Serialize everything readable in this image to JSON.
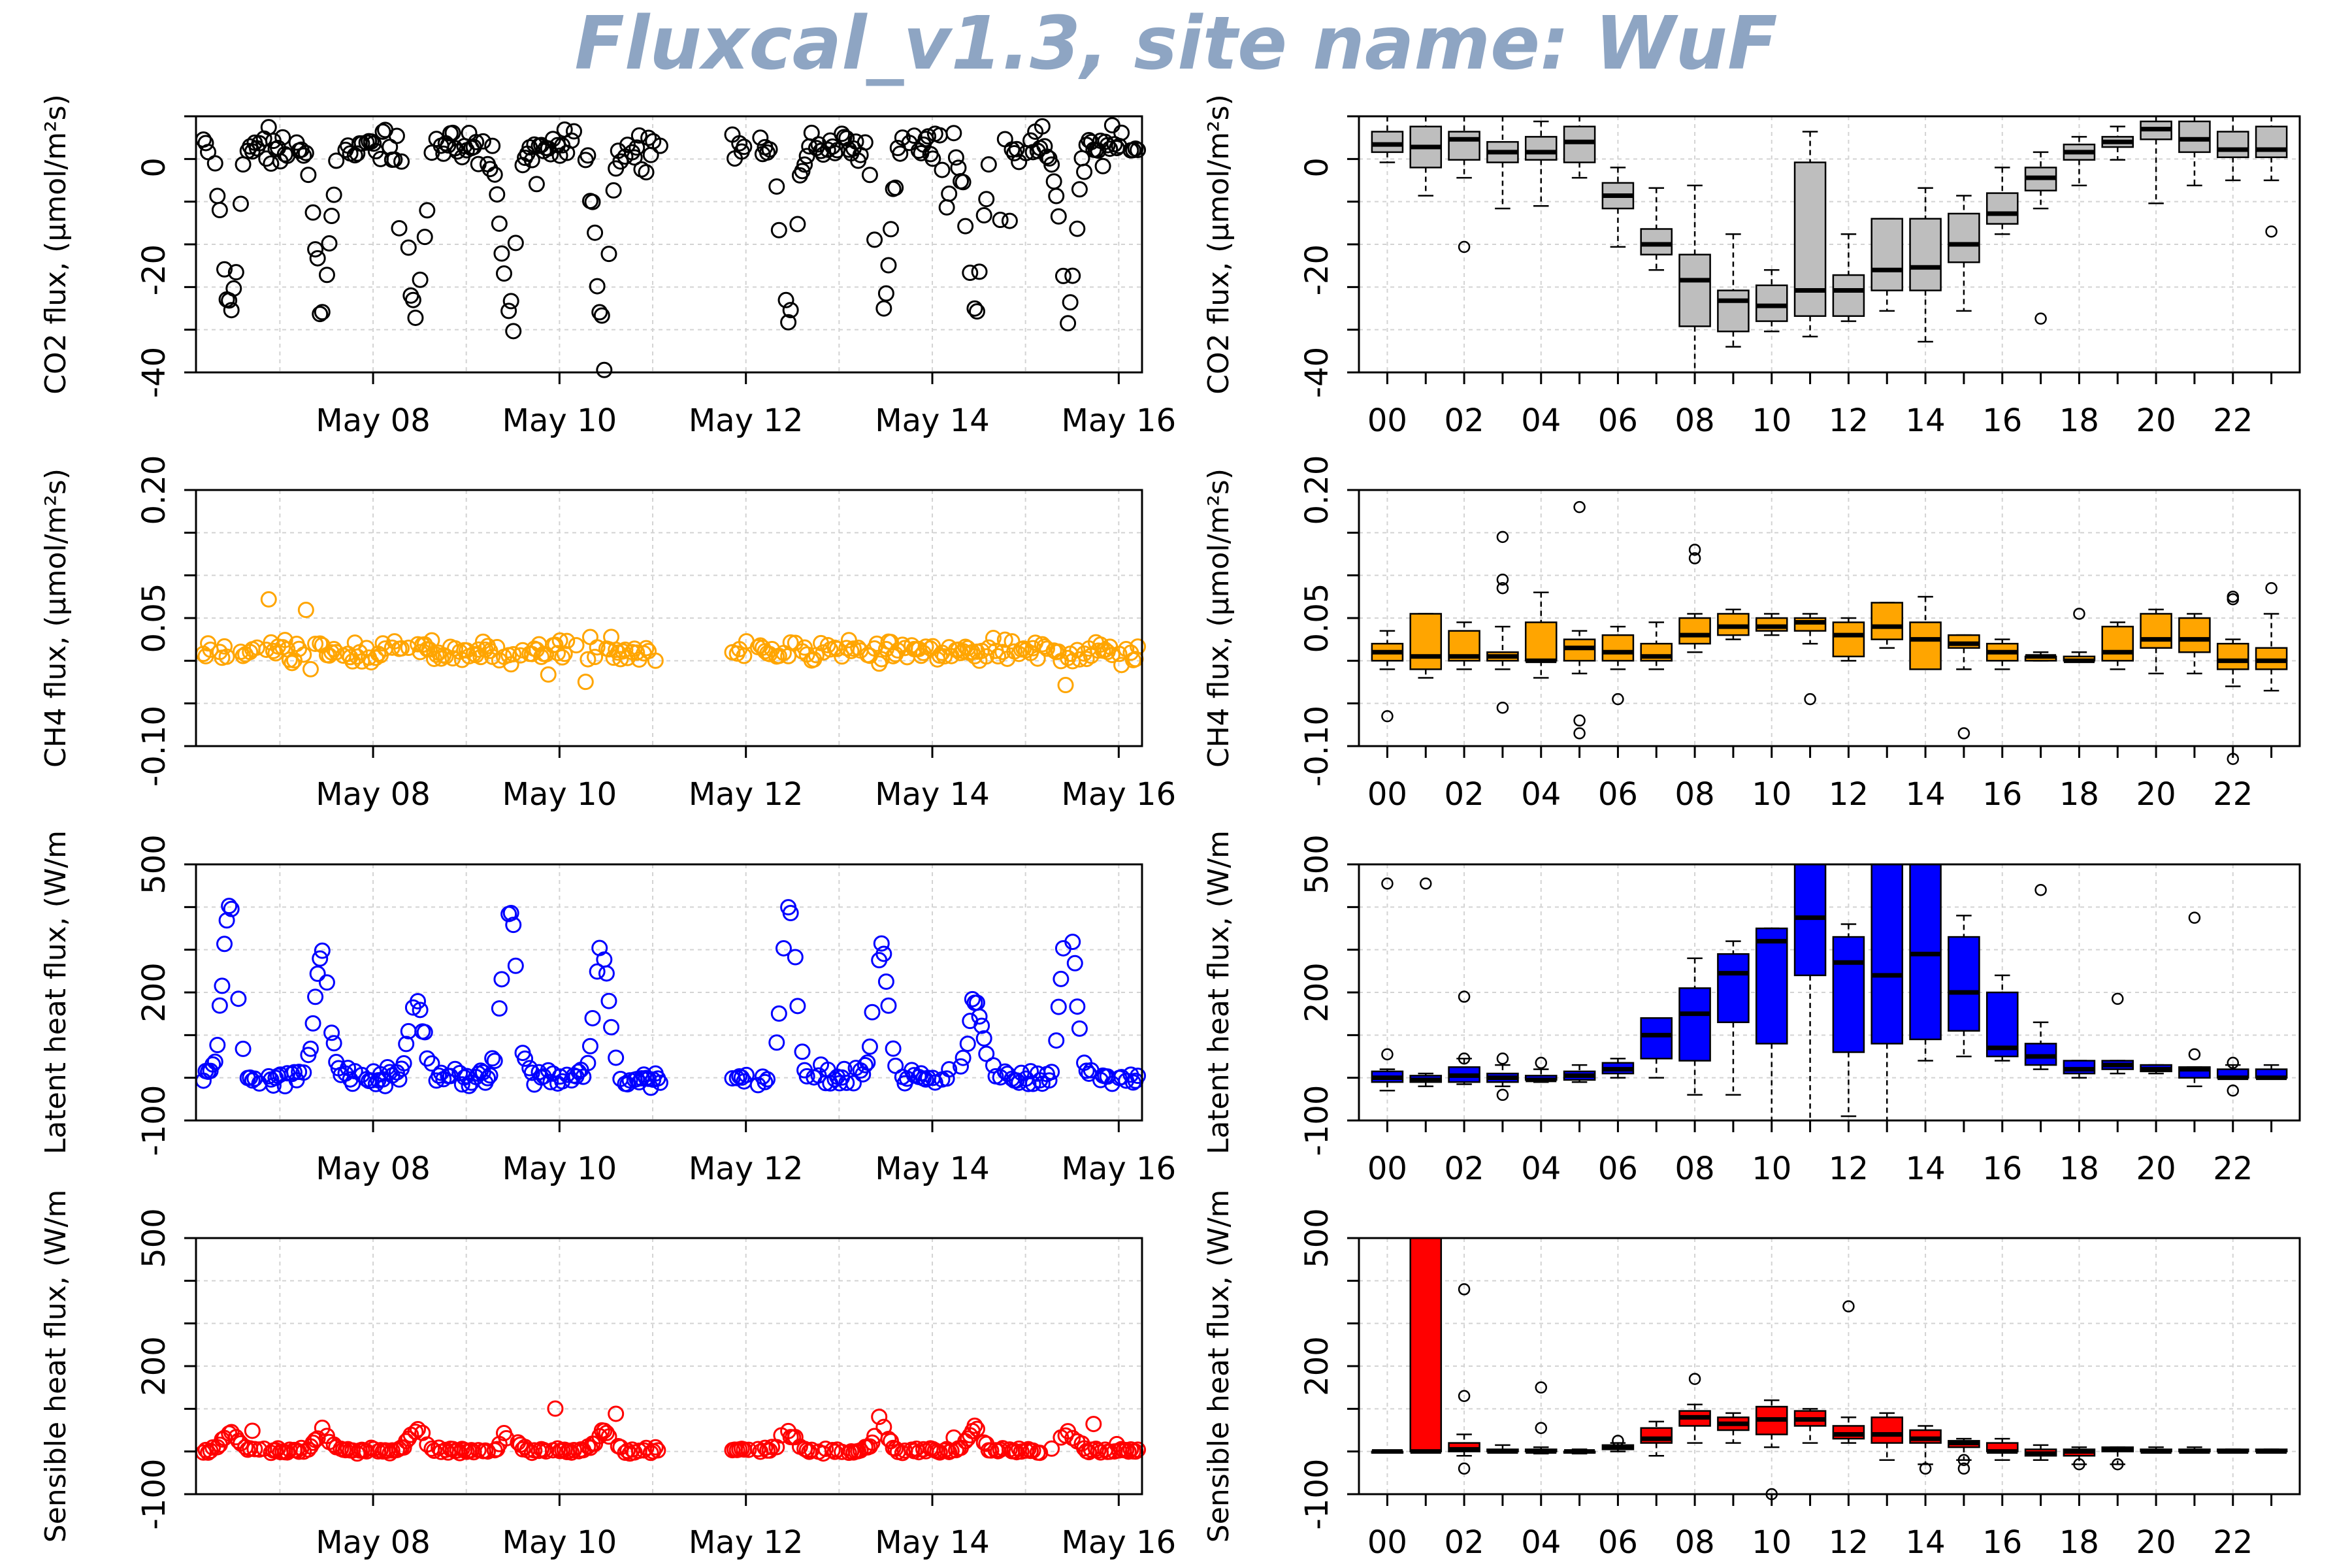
{
  "title": "Fluxcal_v1.3, site name: WuF",
  "colors": {
    "co2": "#000000",
    "ch4": "#ffa500",
    "le": "#0000ff",
    "h": "#ff0000",
    "co2_box": "#bebebe",
    "title": "#8ea5c3",
    "grid": "#d3d3d3"
  },
  "chart_data": [
    {
      "id": "co2_ts",
      "type": "scatter",
      "ylabel": "CO2 flux, (µmol/m²s)",
      "ylim": [
        -40,
        10
      ],
      "yticks": [
        "-40",
        "-20",
        "0"
      ],
      "ytick_values": [
        -40,
        -20,
        0
      ],
      "xlim": [
        6.1,
        16.25
      ],
      "xticks": [
        "May 08",
        "May 10",
        "May 12",
        "May 14",
        "May 16"
      ],
      "xtick_values": [
        8,
        10,
        12,
        14,
        16
      ],
      "color": "#000000",
      "grid": true
    },
    {
      "id": "co2_box",
      "type": "boxplot",
      "ylabel": "CO2 flux, (µmol/m²s)",
      "ylim": [
        -40,
        10
      ],
      "yticks": [
        "-40",
        "-20",
        "0"
      ],
      "ytick_values": [
        -40,
        -20,
        0
      ],
      "categories": [
        "00",
        "02",
        "04",
        "06",
        "08",
        "10",
        "12",
        "14",
        "16",
        "18",
        "20",
        "22"
      ],
      "fill": "#bebebe",
      "grid": true,
      "boxes": [
        [
          1,
          3,
          4.5,
          7,
          10
        ],
        [
          -5.5,
          0,
          4,
          8,
          10
        ],
        [
          -2,
          1.5,
          5.5,
          7,
          10
        ],
        [
          -8,
          1,
          3,
          5,
          10
        ],
        [
          -7.5,
          1.5,
          3,
          6,
          9
        ],
        [
          -2,
          1,
          5,
          8,
          10
        ],
        [
          -15.5,
          -8,
          -5.5,
          -3,
          0
        ],
        [
          -20,
          -17,
          -15,
          -12,
          -4
        ],
        [
          -40,
          -31,
          -22,
          -17,
          -3.5
        ],
        [
          -35,
          -32,
          -26,
          -24,
          -13
        ],
        [
          -32,
          -30,
          -27,
          -23,
          -20
        ],
        [
          -33,
          -29,
          -24,
          1,
          7
        ],
        [
          -30,
          -29,
          -24,
          -21,
          -13
        ],
        [
          -28,
          -24,
          -20,
          -10,
          -10
        ],
        [
          -34,
          -24,
          -19.5,
          -10,
          -4
        ],
        [
          -28,
          -18.5,
          -15,
          -9,
          -5.5
        ],
        [
          -13,
          -11,
          -9,
          -5,
          0
        ],
        [
          -8,
          -4.5,
          -2,
          0,
          3
        ],
        [
          -3.5,
          1.5,
          3,
          4.5,
          6
        ],
        [
          1.5,
          4,
          5,
          6,
          8
        ],
        [
          -7,
          5.5,
          7.5,
          9,
          10
        ],
        [
          -3.5,
          3,
          5.5,
          9,
          10
        ],
        [
          -2.5,
          2,
          3.5,
          7,
          10
        ],
        [
          -2.5,
          2,
          3.5,
          8,
          10
        ]
      ],
      "outliers": [
        [
          2,
          -15.5
        ],
        [
          17,
          -29.5
        ],
        [
          23,
          -12.5
        ]
      ]
    },
    {
      "id": "ch4_ts",
      "type": "scatter",
      "ylabel": "CH4 flux, (µmol/m²s)",
      "ylim": [
        -0.1,
        0.2
      ],
      "yticks": [
        "-0.10",
        "0.05",
        "0.20"
      ],
      "ytick_values": [
        -0.1,
        0.05,
        0.2
      ],
      "xlim": [
        6.1,
        16.25
      ],
      "xticks": [
        "May 08",
        "May 10",
        "May 12",
        "May 14",
        "May 16"
      ],
      "xtick_values": [
        8,
        10,
        12,
        14,
        16
      ],
      "color": "#ffa500",
      "grid": true
    },
    {
      "id": "ch4_box",
      "type": "boxplot",
      "ylabel": "CH4 flux, (µmol/m²s)",
      "ylim": [
        -0.1,
        0.2
      ],
      "yticks": [
        "-0.10",
        "0.05",
        "0.20"
      ],
      "ytick_values": [
        -0.1,
        0.05,
        0.2
      ],
      "categories": [
        "00",
        "02",
        "04",
        "06",
        "08",
        "10",
        "12",
        "14",
        "16",
        "18",
        "20",
        "22"
      ],
      "fill": "#ffa500",
      "grid": true,
      "boxes": [
        [
          -0.01,
          0.0,
          0.01,
          0.02,
          0.035
        ],
        [
          -0.02,
          -0.01,
          0.005,
          0.055,
          0.055
        ],
        [
          -0.01,
          0.0,
          0.005,
          0.035,
          0.045
        ],
        [
          -0.01,
          0.0,
          0.005,
          0.01,
          0.04
        ],
        [
          -0.02,
          0.0,
          0.0,
          0.045,
          0.08
        ],
        [
          -0.015,
          0.0,
          0.015,
          0.025,
          0.035
        ],
        [
          -0.01,
          0.0,
          0.01,
          0.03,
          0.04
        ],
        [
          -0.01,
          0.0,
          0.005,
          0.02,
          0.045
        ],
        [
          0.01,
          0.02,
          0.03,
          0.05,
          0.055
        ],
        [
          0.025,
          0.03,
          0.04,
          0.055,
          0.06
        ],
        [
          0.03,
          0.035,
          0.04,
          0.05,
          0.055
        ],
        [
          0.02,
          0.035,
          0.045,
          0.05,
          0.055
        ],
        [
          0.0,
          0.005,
          0.03,
          0.045,
          0.05
        ],
        [
          0.015,
          0.025,
          0.04,
          0.068,
          0.068
        ],
        [
          0.0,
          -0.01,
          0.025,
          0.045,
          0.075
        ],
        [
          -0.01,
          0.015,
          0.02,
          0.03,
          0.03
        ],
        [
          -0.01,
          0.0,
          0.01,
          0.02,
          0.025
        ],
        [
          0.0,
          0.0,
          0.005,
          0.005,
          0.01
        ],
        [
          0.0,
          0.0,
          0.0,
          0.005,
          0.01
        ],
        [
          -0.01,
          0.0,
          0.01,
          0.04,
          0.045
        ],
        [
          -0.015,
          0.015,
          0.025,
          0.055,
          0.06
        ],
        [
          -0.015,
          0.01,
          0.025,
          0.05,
          0.055
        ],
        [
          -0.03,
          -0.01,
          0.0,
          0.02,
          0.025
        ],
        [
          -0.035,
          -0.01,
          0.0,
          0.015,
          0.055
        ]
      ],
      "outliers": [
        [
          0,
          -0.065
        ],
        [
          3,
          0.145
        ],
        [
          3,
          0.095
        ],
        [
          3,
          0.085
        ],
        [
          3,
          -0.055
        ],
        [
          5,
          0.18
        ],
        [
          5,
          -0.07
        ],
        [
          5,
          -0.085
        ],
        [
          6,
          -0.045
        ],
        [
          8,
          0.13
        ],
        [
          8,
          0.12
        ],
        [
          11,
          -0.045
        ],
        [
          15,
          -0.085
        ],
        [
          18,
          0.055
        ],
        [
          22,
          0.075
        ],
        [
          22,
          0.072
        ],
        [
          22,
          -0.115
        ],
        [
          23,
          0.085
        ]
      ]
    },
    {
      "id": "le_ts",
      "type": "scatter",
      "ylabel": "Latent heat flux, (W/m",
      "ylim": [
        -100,
        500
      ],
      "yticks": [
        "-100",
        "200",
        "500"
      ],
      "ytick_values": [
        -100,
        200,
        500
      ],
      "xlim": [
        6.1,
        16.25
      ],
      "xticks": [
        "May 08",
        "May 10",
        "May 12",
        "May 14",
        "May 16"
      ],
      "xtick_values": [
        8,
        10,
        12,
        14,
        16
      ],
      "color": "#0000ff",
      "grid": true
    },
    {
      "id": "le_box",
      "type": "boxplot",
      "ylabel": "Latent heat flux, (W/m",
      "ylim": [
        -100,
        500
      ],
      "yticks": [
        "-100",
        "200",
        "500"
      ],
      "ytick_values": [
        -100,
        200,
        500
      ],
      "categories": [
        "00",
        "02",
        "04",
        "06",
        "08",
        "10",
        "12",
        "14",
        "16",
        "18",
        "20",
        "22"
      ],
      "fill": "#0000ff",
      "grid": true,
      "boxes": [
        [
          -30,
          -10,
          0,
          15,
          20
        ],
        [
          -20,
          -10,
          -5,
          5,
          10
        ],
        [
          -15,
          -10,
          5,
          25,
          45
        ],
        [
          -20,
          -10,
          0,
          10,
          30
        ],
        [
          -10,
          -5,
          -5,
          5,
          20
        ],
        [
          -10,
          -5,
          5,
          15,
          30
        ],
        [
          0,
          10,
          20,
          35,
          45
        ],
        [
          0,
          45,
          100,
          140,
          140
        ],
        [
          -40,
          40,
          150,
          210,
          280
        ],
        [
          -40,
          130,
          245,
          290,
          320
        ],
        [
          -100,
          80,
          320,
          350,
          350
        ],
        [
          -100,
          240,
          375,
          500,
          500
        ],
        [
          -90,
          60,
          270,
          330,
          360
        ],
        [
          -100,
          80,
          240,
          500,
          500
        ],
        [
          40,
          90,
          290,
          500,
          500
        ],
        [
          50,
          110,
          200,
          330,
          380
        ],
        [
          40,
          50,
          70,
          200,
          240
        ],
        [
          20,
          30,
          50,
          80,
          130
        ],
        [
          0,
          10,
          20,
          40,
          40
        ],
        [
          10,
          20,
          30,
          40,
          40
        ],
        [
          10,
          15,
          20,
          30,
          30
        ],
        [
          -20,
          0,
          20,
          25,
          25
        ],
        [
          0,
          0,
          0,
          20,
          30
        ],
        [
          0,
          0,
          0,
          20,
          30
        ]
      ],
      "outliers": [
        [
          0,
          455
        ],
        [
          0,
          55
        ],
        [
          1,
          455
        ],
        [
          2,
          190
        ],
        [
          2,
          45
        ],
        [
          3,
          -40
        ],
        [
          3,
          45
        ],
        [
          4,
          35
        ],
        [
          17,
          440
        ],
        [
          19,
          185
        ],
        [
          21,
          375
        ],
        [
          21,
          55
        ],
        [
          22,
          -30
        ],
        [
          22,
          35
        ]
      ]
    },
    {
      "id": "h_ts",
      "type": "scatter",
      "ylabel": "Sensible heat flux, (W/m",
      "ylim": [
        -100,
        500
      ],
      "yticks": [
        "-100",
        "200",
        "500"
      ],
      "ytick_values": [
        -100,
        200,
        500
      ],
      "xlim": [
        6.1,
        16.25
      ],
      "xticks": [
        "May 08",
        "May 10",
        "May 12",
        "May 14",
        "May 16"
      ],
      "xtick_values": [
        8,
        10,
        12,
        14,
        16
      ],
      "color": "#ff0000",
      "grid": true
    },
    {
      "id": "h_box",
      "type": "boxplot",
      "ylabel": "Sensible heat flux, (W/m",
      "ylim": [
        -100,
        500
      ],
      "yticks": [
        "-100",
        "200",
        "500"
      ],
      "ytick_values": [
        -100,
        200,
        500
      ],
      "categories": [
        "00",
        "02",
        "04",
        "06",
        "08",
        "10",
        "12",
        "14",
        "16",
        "18",
        "20",
        "22"
      ],
      "fill": "#ff0000",
      "grid": true,
      "boxes": [
        [
          0,
          0,
          0,
          0,
          0
        ],
        [
          0,
          0,
          0,
          500,
          500
        ],
        [
          -10,
          0,
          5,
          20,
          40
        ],
        [
          0,
          0,
          0,
          5,
          15
        ],
        [
          -5,
          0,
          0,
          5,
          10
        ],
        [
          -5,
          0,
          0,
          0,
          5
        ],
        [
          0,
          5,
          10,
          15,
          20
        ],
        [
          -10,
          20,
          30,
          55,
          70
        ],
        [
          20,
          60,
          80,
          95,
          110
        ],
        [
          20,
          50,
          65,
          80,
          90
        ],
        [
          10,
          40,
          75,
          105,
          120
        ],
        [
          20,
          60,
          75,
          95,
          100
        ],
        [
          20,
          30,
          40,
          60,
          80
        ],
        [
          -20,
          20,
          40,
          80,
          90
        ],
        [
          -30,
          20,
          30,
          50,
          60
        ],
        [
          -20,
          10,
          20,
          25,
          30
        ],
        [
          -20,
          0,
          0,
          20,
          30
        ],
        [
          -20,
          -10,
          -5,
          5,
          15
        ],
        [
          -30,
          -10,
          0,
          5,
          10
        ],
        [
          -30,
          0,
          5,
          10,
          10
        ],
        [
          0,
          0,
          0,
          5,
          10
        ],
        [
          0,
          0,
          0,
          5,
          10
        ],
        [
          0,
          0,
          0,
          5,
          5
        ],
        [
          0,
          0,
          0,
          5,
          5
        ]
      ],
      "outliers": [
        [
          2,
          -40
        ],
        [
          2,
          130
        ],
        [
          2,
          380
        ],
        [
          4,
          150
        ],
        [
          4,
          55
        ],
        [
          6,
          25
        ],
        [
          8,
          170
        ],
        [
          10,
          -100
        ],
        [
          12,
          340
        ],
        [
          14,
          -40
        ],
        [
          15,
          -20
        ],
        [
          15,
          -40
        ],
        [
          18,
          -30
        ],
        [
          19,
          -30
        ]
      ]
    }
  ]
}
